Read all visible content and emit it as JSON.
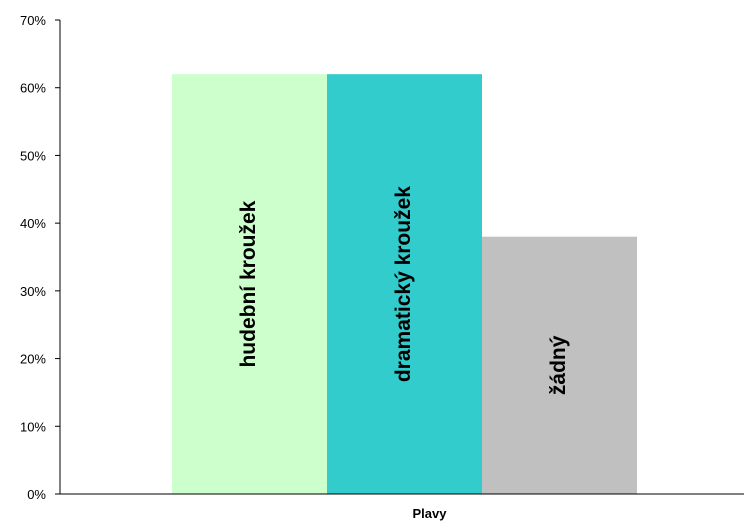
{
  "chart_data": {
    "type": "bar",
    "categories": [
      "Plavy"
    ],
    "series": [
      {
        "name": "hudební kroužek",
        "values": [
          62
        ],
        "color": "#ccffcc"
      },
      {
        "name": "dramatický kroužek",
        "values": [
          62
        ],
        "color": "#33cccc"
      },
      {
        "name": "žádný",
        "values": [
          38
        ],
        "color": "#c0c0c0"
      }
    ],
    "title": "",
    "xlabel": "",
    "ylabel": "",
    "ylim": [
      0,
      70
    ],
    "yticks": [
      "0%",
      "10%",
      "20%",
      "30%",
      "40%",
      "50%",
      "60%",
      "70%"
    ],
    "grid": false,
    "legend": "none"
  }
}
